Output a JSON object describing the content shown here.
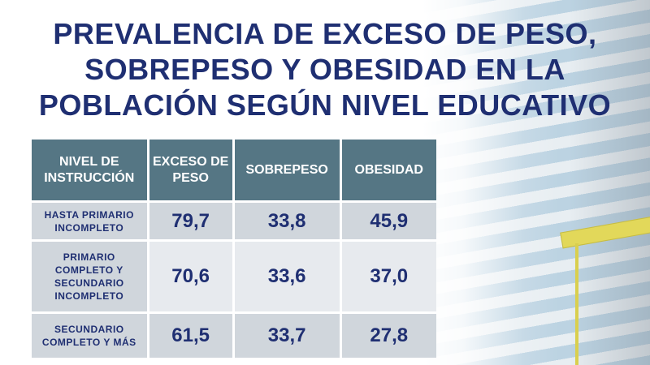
{
  "title": {
    "line1": "PREVALENCIA DE EXCESO DE PESO,",
    "line2": "SOBREPESO Y OBESIDAD EN LA",
    "line3": "POBLACIÓN SEGÚN NIVEL EDUCATIVO"
  },
  "colors": {
    "title": "#1f2f72",
    "header_bg": "#557684",
    "row_bg": "#d0d6dc",
    "row_alt_bg": "#e7eaee"
  },
  "table": {
    "headers": [
      "NIVEL DE INSTRUCCIÓN",
      "EXCESO DE PESO",
      "SOBREPESO",
      "OBESIDAD"
    ],
    "rows": [
      {
        "label": "HASTA PRIMARIO INCOMPLETO",
        "exceso": "79,7",
        "sobrepeso": "33,8",
        "obesidad": "45,9"
      },
      {
        "label": "PRIMARIO COMPLETO Y SECUNDARIO INCOMPLETO",
        "exceso": "70,6",
        "sobrepeso": "33,6",
        "obesidad": "37,0"
      },
      {
        "label": "SECUNDARIO COMPLETO Y MÁS",
        "exceso": "61,5",
        "sobrepeso": "33,7",
        "obesidad": "27,8"
      }
    ]
  }
}
